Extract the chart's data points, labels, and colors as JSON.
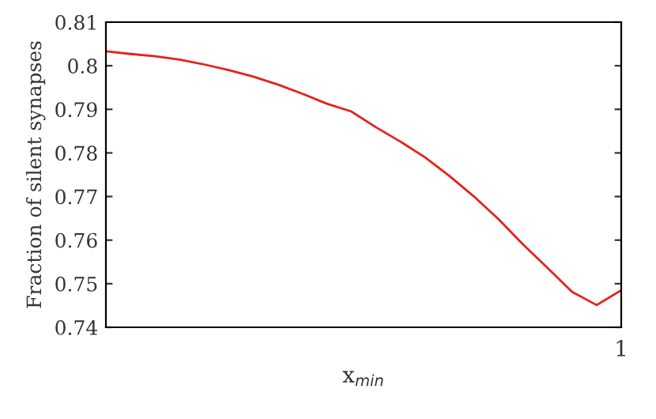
{
  "chart_data": {
    "type": "line",
    "xlabel": "x$_{min}$",
    "ylabel": "Fraction of silent synapses",
    "annotations": [
      "1"
    ],
    "categories": [
      null,
      null,
      null,
      null,
      null,
      null,
      null,
      null,
      null,
      null,
      null,
      null,
      null,
      null,
      null,
      null,
      null,
      null,
      null,
      null,
      null,
      null
    ],
    "ylim": [
      0.74,
      0.81
    ],
    "yticks": [
      0.74,
      0.75,
      0.76,
      0.77,
      0.78,
      0.79,
      0.8,
      0.81
    ],
    "grid": false,
    "legend": false,
    "series": [
      {
        "color": "#e8201c",
        "values": [
          0.8033,
          0.8027,
          0.8022,
          0.8014,
          0.8003,
          0.799,
          0.7975,
          0.7957,
          0.7936,
          0.7913,
          0.7895,
          0.7859,
          0.7826,
          0.779,
          0.7747,
          0.77,
          0.7648,
          0.759,
          0.7536,
          0.7481,
          0.7451,
          0.7485
        ]
      }
    ]
  }
}
